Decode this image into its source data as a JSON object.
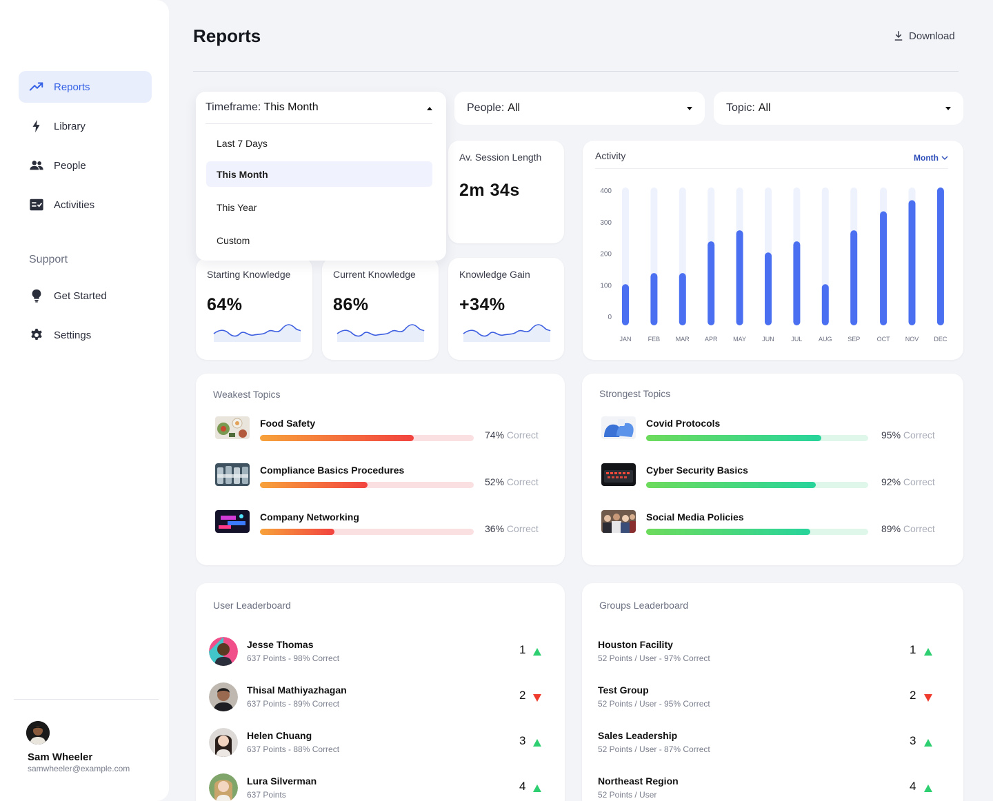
{
  "sidebar": {
    "nav": [
      {
        "label": "Reports",
        "icon": "trend-up-icon",
        "active": true
      },
      {
        "label": "Library",
        "icon": "lightning-icon"
      },
      {
        "label": "People",
        "icon": "people-icon"
      },
      {
        "label": "Activities",
        "icon": "checklist-icon"
      }
    ],
    "support_title": "Support",
    "support": [
      {
        "label": "Get Started",
        "icon": "lightbulb-icon"
      },
      {
        "label": "Settings",
        "icon": "gear-icon"
      }
    ],
    "user": {
      "name": "Sam Wheeler",
      "email": "samwheeler@example.com"
    }
  },
  "header": {
    "title": "Reports",
    "download_label": "Download"
  },
  "filters": {
    "timeframe": {
      "label": "Timeframe:",
      "value": "This Month",
      "options": [
        "Last 7 Days",
        "This Month",
        "This Year",
        "Custom"
      ]
    },
    "people": {
      "label": "People:",
      "value": "All"
    },
    "topic": {
      "label": "Topic:",
      "value": "All"
    }
  },
  "stats": {
    "session": {
      "label": "Av. Session Length",
      "value": "2m 34s"
    },
    "starting": {
      "label": "Starting Knowledge",
      "value": "64%"
    },
    "current": {
      "label": "Current Knowledge",
      "value": "86%"
    },
    "gain": {
      "label": "Knowledge Gain",
      "value": "+34%"
    }
  },
  "activity": {
    "title": "Activity",
    "period": "Month"
  },
  "chart_data": {
    "type": "bar",
    "title": "Activity",
    "categories": [
      "JAN",
      "FEB",
      "MAR",
      "APR",
      "MAY",
      "JUN",
      "JUL",
      "AUG",
      "SEP",
      "OCT",
      "NOV",
      "DEC"
    ],
    "values": [
      130,
      165,
      165,
      265,
      300,
      230,
      265,
      130,
      300,
      360,
      395,
      435
    ],
    "yticks": [
      0,
      100,
      200,
      300,
      400
    ],
    "ylim": [
      0,
      435
    ],
    "grid": false,
    "bar_color": "#4a6ff0",
    "track_color": "#eef2fd"
  },
  "weakest": {
    "title": "Weakest Topics",
    "items": [
      {
        "name": "Food Safety",
        "pct": 74,
        "pct_text": "74%",
        "correct": "Correct",
        "thumb": "food-thumb"
      },
      {
        "name": "Compliance Basics Procedures",
        "pct": 52,
        "pct_text": "52%",
        "correct": "Correct",
        "thumb": "bottles-thumb"
      },
      {
        "name": "Company Networking",
        "pct": 36,
        "pct_text": "36%",
        "correct": "Correct",
        "thumb": "neon-thumb"
      }
    ]
  },
  "strongest": {
    "title": "Strongest Topics",
    "items": [
      {
        "name": "Covid Protocols",
        "pct": 95,
        "pct_text": "95%",
        "correct": "Correct",
        "thumb": "gloves-thumb"
      },
      {
        "name": "Cyber Security Basics",
        "pct": 92,
        "pct_text": "92%",
        "correct": "Correct",
        "thumb": "keyboard-thumb"
      },
      {
        "name": "Social Media Policies",
        "pct": 89,
        "pct_text": "89%",
        "correct": "Correct",
        "thumb": "crowd-thumb"
      }
    ]
  },
  "user_leaderboard": {
    "title": "User Leaderboard",
    "rows": [
      {
        "name": "Jesse Thomas",
        "sub": "637 Points - 98% Correct",
        "rank": "1",
        "trend": "up"
      },
      {
        "name": "Thisal Mathiyazhagan",
        "sub": "637 Points - 89% Correct",
        "rank": "2",
        "trend": "down"
      },
      {
        "name": "Helen Chuang",
        "sub": "637 Points - 88% Correct",
        "rank": "3",
        "trend": "up"
      },
      {
        "name": "Lura Silverman",
        "sub": "637 Points",
        "rank": "4",
        "trend": "up"
      }
    ]
  },
  "groups_leaderboard": {
    "title": "Groups Leaderboard",
    "rows": [
      {
        "name": "Houston Facility",
        "sub": "52 Points / User - 97% Correct",
        "rank": "1",
        "trend": "up"
      },
      {
        "name": "Test Group",
        "sub": "52 Points / User - 95% Correct",
        "rank": "2",
        "trend": "down"
      },
      {
        "name": "Sales Leadership",
        "sub": "52 Points / User -  87% Correct",
        "rank": "3",
        "trend": "up"
      },
      {
        "name": "Northeast Region",
        "sub": "52 Points / User",
        "rank": "4",
        "trend": "up"
      }
    ]
  }
}
